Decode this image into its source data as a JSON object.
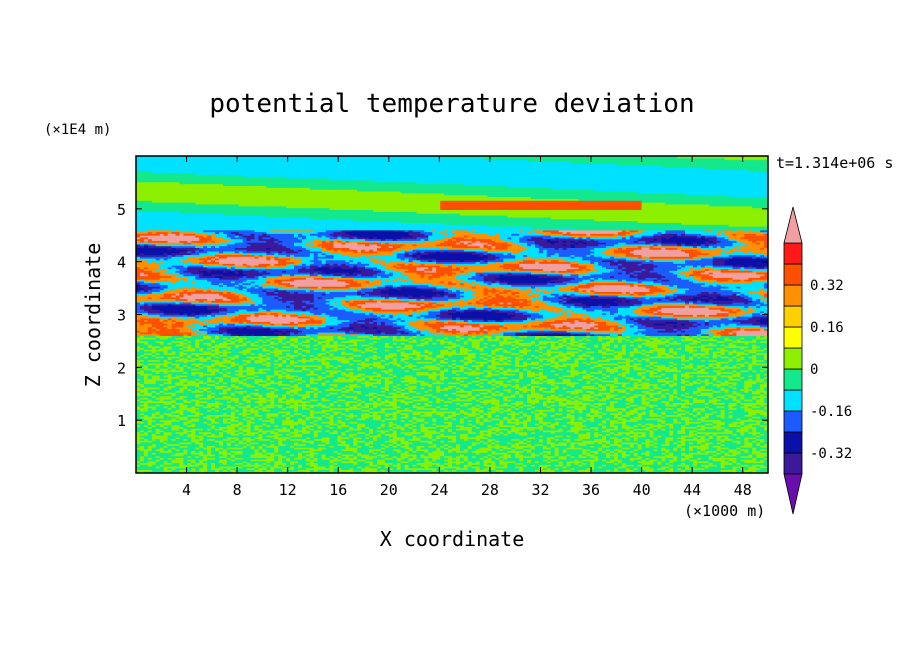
{
  "chart_data": {
    "type": "heatmap",
    "title": "potential temperature deviation",
    "xlabel": "X coordinate",
    "ylabel": "Z coordinate",
    "x_unit": "(×1000 m)",
    "y_unit": "(×1E4 m)",
    "time_label": "t=1.314e+06 s",
    "xlim": [
      0,
      50
    ],
    "ylim": [
      0,
      6
    ],
    "x_ticks": [
      4,
      8,
      12,
      16,
      20,
      24,
      28,
      32,
      36,
      40,
      44,
      48
    ],
    "y_ticks": [
      1,
      2,
      3,
      4,
      5
    ],
    "x_tick_labels": [
      "4",
      "8",
      "12",
      "16",
      "20",
      "24",
      "28",
      "32",
      "36",
      "40",
      "44",
      "48"
    ],
    "y_tick_labels": [
      "1",
      "2",
      "3",
      "4",
      "5"
    ],
    "colorbar": {
      "levels": [
        -0.48,
        -0.4,
        -0.32,
        -0.24,
        -0.16,
        -0.08,
        0,
        0.08,
        0.16,
        0.24,
        0.32,
        0.4,
        0.48
      ],
      "colors": [
        "#6a0dad",
        "#3a1a9a",
        "#0a10a8",
        "#1a5cff",
        "#00e0ff",
        "#14e88c",
        "#8cf000",
        "#ffff00",
        "#ffd000",
        "#ff9000",
        "#ff5000",
        "#ff1a1a",
        "#f0a0a0"
      ],
      "tick_labels": [
        "0.32",
        "0.16",
        "0",
        "-0.16",
        "-0.32"
      ],
      "extend": "both"
    },
    "bands": [
      {
        "z_range": [
          0,
          2.6
        ],
        "pattern": "noise",
        "colors": [
          "#14e88c",
          "#8cf000"
        ]
      },
      {
        "z_range": [
          2.6,
          4.6
        ],
        "pattern": "mixed",
        "colors": [
          "#0a10a8",
          "#3a1a9a",
          "#1a5cff",
          "#00e0ff",
          "#ff9000",
          "#ff5000",
          "#f0a0a0"
        ]
      },
      {
        "z_range": [
          4.6,
          6
        ],
        "pattern": "smooth",
        "colors": [
          "#8cf000",
          "#14e88c",
          "#00e0ff",
          "#ff5000"
        ]
      }
    ]
  }
}
